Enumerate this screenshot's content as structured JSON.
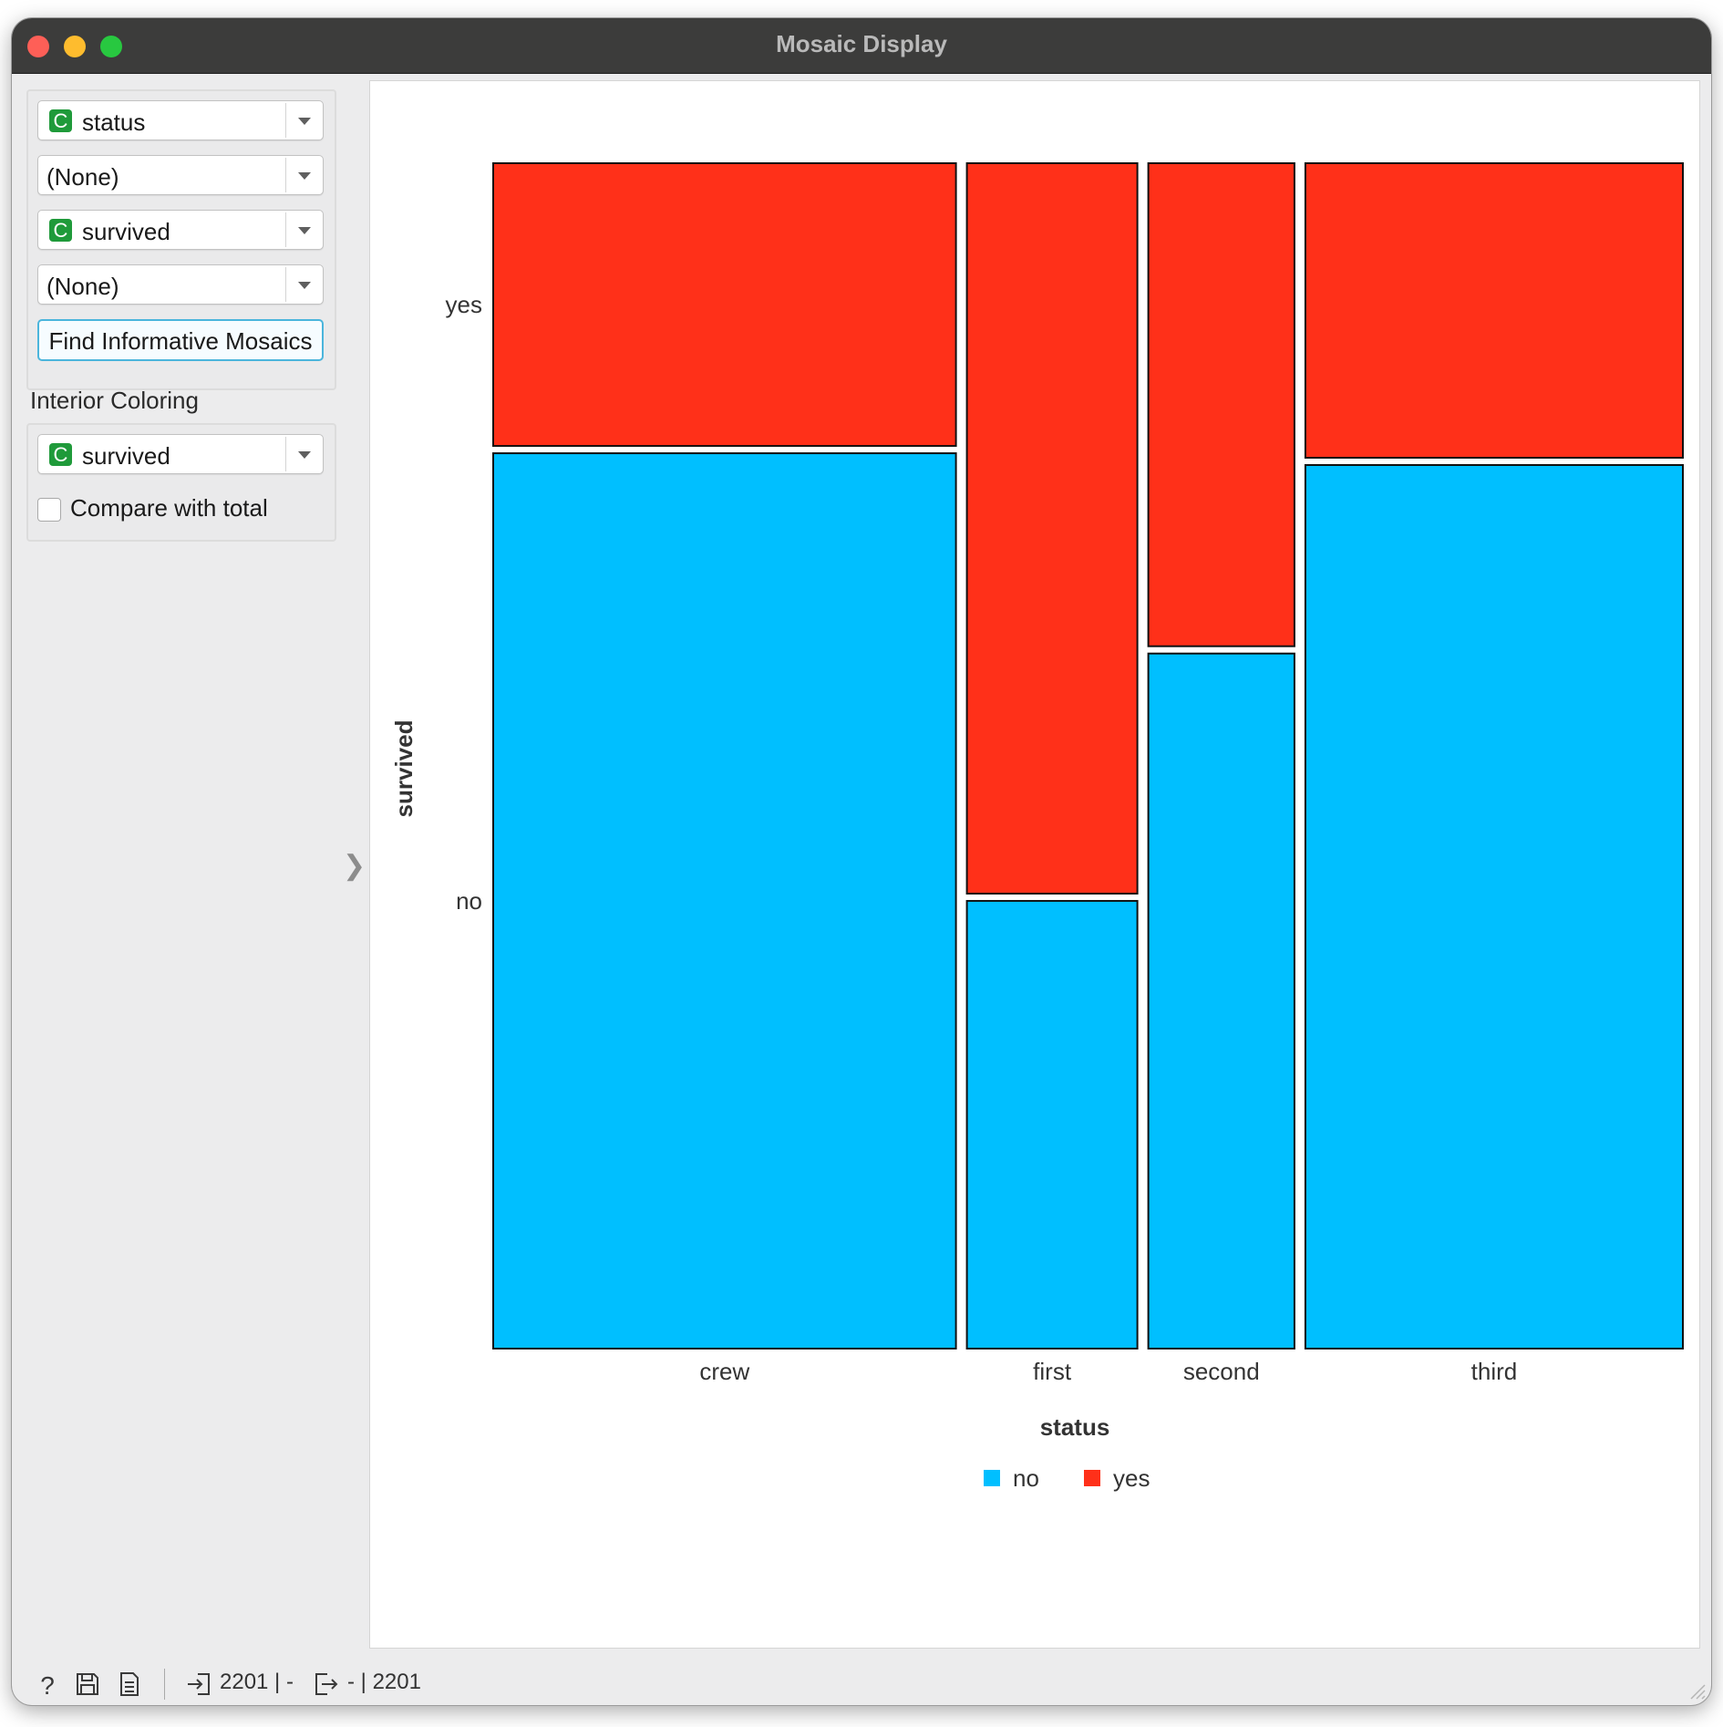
{
  "window": {
    "title": "Mosaic Display"
  },
  "controls": {
    "attributes": [
      {
        "value": "status",
        "badge": "C"
      },
      {
        "value": "(None)",
        "badge": ""
      },
      {
        "value": "survived",
        "badge": "C"
      },
      {
        "value": "(None)",
        "badge": ""
      }
    ],
    "find_button_label": "Find Informative Mosaics",
    "interior_coloring_label": "Interior Coloring",
    "interior_coloring": {
      "value": "survived",
      "badge": "C"
    },
    "compare_label": "Compare with total",
    "compare_checked": false
  },
  "statusbar": {
    "input_summary": "2201 | -",
    "output_summary": "- | 2201"
  },
  "chart_data": {
    "type": "mosaic",
    "xlabel": "status",
    "ylabel": "survived",
    "categories": [
      "crew",
      "first",
      "second",
      "third"
    ],
    "column_shares": [
      0.38,
      0.14,
      0.12,
      0.31
    ],
    "levels": [
      "no",
      "yes"
    ],
    "level_colors": {
      "no": "#00bfff",
      "yes": "#ff3019"
    },
    "yes_fraction": [
      0.24,
      0.62,
      0.41,
      0.25
    ],
    "legend": [
      {
        "name": "no",
        "color": "#00bfff"
      },
      {
        "name": "yes",
        "color": "#ff3019"
      }
    ],
    "legend_position": "bottom"
  }
}
